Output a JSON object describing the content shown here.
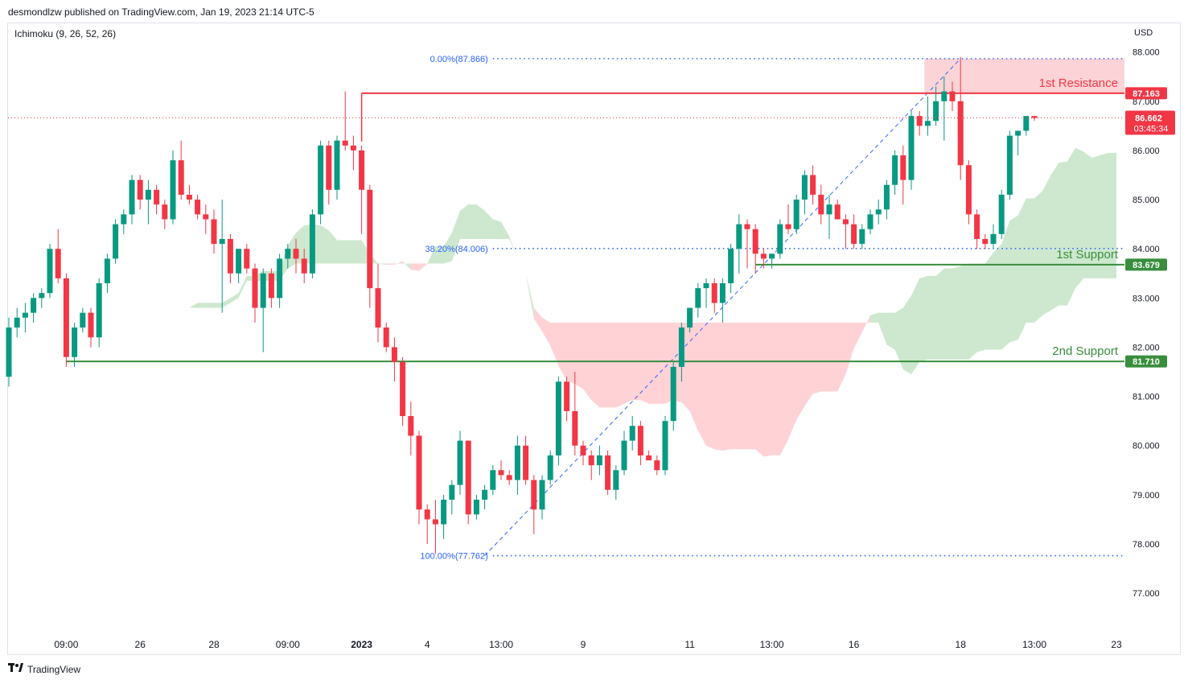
{
  "header": {
    "publisher": "desmondlzw published on TradingView.com, Jan 19, 2023 21:14 UTC-5",
    "indicator": "Ichimoku (9, 26, 52, 26)",
    "currency": "USD"
  },
  "footer": {
    "logo_text": "TradingView"
  },
  "chart_data": {
    "type": "candlestick",
    "ylim": [
      76.2,
      88.6
    ],
    "y_ticks": [
      "77.000",
      "78.000",
      "79.000",
      "80.000",
      "81.000",
      "82.000",
      "83.000",
      "84.000",
      "85.000",
      "86.000",
      "87.000",
      "88.000"
    ],
    "x_ticks": [
      "09:00",
      "26",
      "28",
      "09:00",
      "2023",
      "4",
      "13:00",
      "9",
      "11",
      "13:00",
      "16",
      "18",
      "13:00",
      "23"
    ],
    "x_tick_index": [
      7,
      16,
      25,
      34,
      43,
      51,
      60,
      70,
      83,
      93,
      103,
      116,
      125,
      135
    ],
    "current_price": {
      "value": 86.662,
      "label": "86.662",
      "countdown": "03:45:34"
    },
    "levels": [
      {
        "name": "1st Resistance",
        "value": 87.163,
        "label": "87.163",
        "color": "#f23645"
      },
      {
        "name": "1st Support",
        "value": 83.679,
        "label": "83.679",
        "color": "#388e3c"
      },
      {
        "name": "2nd Support",
        "value": 81.71,
        "label": "81.710",
        "color": "#388e3c"
      }
    ],
    "fib_levels": [
      {
        "label": "0.00%(87.866)",
        "value": 87.866
      },
      {
        "label": "38.20%(84.006)",
        "value": 84.006
      },
      {
        "label": "100.00%(77.762)",
        "value": 77.762
      }
    ],
    "resistance_zone": [
      87.163,
      87.866
    ],
    "colors": {
      "up": "#089981",
      "down": "#f23645",
      "cloud_bull": "#c8e6c9",
      "cloud_bear": "#ffcdd2",
      "line_green": "#388e3c",
      "fib": "#2962ff"
    },
    "candles": [
      [
        81.4,
        82.6,
        81.2,
        82.4
      ],
      [
        82.4,
        82.8,
        82.2,
        82.6
      ],
      [
        82.6,
        82.9,
        82.3,
        82.7
      ],
      [
        82.7,
        83.1,
        82.5,
        83.0
      ],
      [
        83.0,
        83.2,
        82.8,
        83.1
      ],
      [
        83.1,
        84.1,
        83.0,
        84.0
      ],
      [
        84.0,
        84.4,
        83.3,
        83.4
      ],
      [
        83.4,
        83.5,
        81.6,
        81.8
      ],
      [
        81.8,
        82.5,
        81.6,
        82.4
      ],
      [
        82.4,
        82.8,
        82.3,
        82.7
      ],
      [
        82.7,
        82.8,
        82.0,
        82.2
      ],
      [
        82.2,
        83.4,
        82.0,
        83.3
      ],
      [
        83.3,
        83.9,
        83.1,
        83.8
      ],
      [
        83.8,
        84.6,
        83.7,
        84.5
      ],
      [
        84.5,
        84.8,
        84.3,
        84.7
      ],
      [
        84.7,
        85.5,
        84.5,
        85.4
      ],
      [
        85.4,
        85.5,
        84.8,
        85.0
      ],
      [
        85.0,
        85.4,
        84.5,
        85.2
      ],
      [
        85.2,
        85.3,
        84.7,
        84.9
      ],
      [
        84.9,
        85.0,
        84.4,
        84.6
      ],
      [
        84.6,
        86.0,
        84.5,
        85.8
      ],
      [
        85.8,
        86.2,
        85.0,
        85.1
      ],
      [
        85.1,
        85.3,
        84.9,
        85.0
      ],
      [
        85.0,
        85.1,
        84.6,
        84.7
      ],
      [
        84.7,
        84.9,
        84.3,
        84.6
      ],
      [
        84.6,
        84.8,
        83.9,
        84.1
      ],
      [
        84.1,
        85.0,
        82.7,
        84.2
      ],
      [
        84.2,
        84.3,
        83.3,
        83.5
      ],
      [
        83.5,
        84.0,
        83.3,
        84.0
      ],
      [
        84.0,
        84.1,
        83.5,
        83.6
      ],
      [
        83.6,
        83.7,
        82.5,
        82.8
      ],
      [
        82.8,
        83.6,
        81.9,
        83.5
      ],
      [
        83.5,
        83.6,
        82.8,
        83.0
      ],
      [
        83.0,
        83.9,
        82.8,
        83.8
      ],
      [
        83.8,
        84.1,
        83.6,
        84.0
      ],
      [
        84.0,
        84.2,
        83.5,
        83.8
      ],
      [
        83.8,
        84.0,
        83.3,
        83.5
      ],
      [
        83.5,
        84.8,
        83.4,
        84.7
      ],
      [
        84.7,
        86.2,
        84.5,
        86.1
      ],
      [
        86.1,
        86.2,
        84.9,
        85.2
      ],
      [
        85.2,
        86.3,
        85.0,
        86.2
      ],
      [
        86.2,
        87.2,
        86.0,
        86.1
      ],
      [
        86.1,
        86.3,
        85.6,
        86.0
      ],
      [
        86.0,
        86.1,
        84.3,
        85.2
      ],
      [
        85.2,
        85.3,
        82.8,
        83.2
      ],
      [
        83.2,
        83.7,
        82.1,
        82.4
      ],
      [
        82.4,
        82.5,
        81.9,
        82.0
      ],
      [
        82.0,
        82.2,
        81.3,
        81.7
      ],
      [
        81.7,
        81.8,
        80.4,
        80.6
      ],
      [
        80.6,
        80.9,
        79.8,
        80.2
      ],
      [
        80.2,
        80.3,
        78.4,
        78.7
      ],
      [
        78.7,
        78.8,
        78.0,
        78.5
      ],
      [
        78.5,
        78.9,
        77.8,
        78.4
      ],
      [
        78.4,
        79.0,
        78.1,
        78.9
      ],
      [
        78.9,
        79.3,
        78.6,
        79.2
      ],
      [
        79.2,
        80.3,
        79.0,
        80.1
      ],
      [
        80.1,
        80.1,
        78.4,
        78.6
      ],
      [
        78.6,
        79.0,
        78.5,
        78.9
      ],
      [
        78.9,
        79.2,
        78.7,
        79.1
      ],
      [
        79.1,
        79.6,
        79.0,
        79.5
      ],
      [
        79.5,
        79.7,
        79.3,
        79.4
      ],
      [
        79.4,
        79.5,
        79.2,
        79.3
      ],
      [
        79.3,
        80.2,
        79.0,
        80.0
      ],
      [
        80.0,
        80.2,
        79.2,
        79.3
      ],
      [
        79.3,
        79.4,
        78.2,
        78.7
      ],
      [
        78.7,
        79.4,
        78.5,
        79.3
      ],
      [
        79.3,
        79.9,
        79.2,
        79.8
      ],
      [
        79.8,
        81.4,
        79.6,
        81.3
      ],
      [
        81.3,
        81.4,
        80.5,
        80.7
      ],
      [
        80.7,
        81.5,
        79.8,
        80.0
      ],
      [
        80.0,
        80.1,
        79.6,
        79.8
      ],
      [
        79.8,
        79.9,
        79.3,
        79.6
      ],
      [
        79.6,
        80.0,
        79.4,
        79.8
      ],
      [
        79.8,
        79.9,
        79.0,
        79.1
      ],
      [
        79.1,
        79.6,
        78.9,
        79.5
      ],
      [
        79.5,
        80.3,
        79.4,
        80.1
      ],
      [
        80.1,
        80.6,
        79.9,
        80.4
      ],
      [
        80.4,
        80.5,
        79.6,
        79.8
      ],
      [
        79.8,
        79.9,
        79.7,
        79.7
      ],
      [
        79.7,
        79.8,
        79.4,
        79.5
      ],
      [
        79.5,
        80.6,
        79.4,
        80.5
      ],
      [
        80.5,
        81.7,
        80.3,
        81.6
      ],
      [
        81.6,
        82.5,
        81.3,
        82.4
      ],
      [
        82.4,
        82.8,
        82.3,
        82.8
      ],
      [
        82.8,
        83.3,
        82.6,
        83.2
      ],
      [
        83.2,
        83.4,
        82.8,
        83.3
      ],
      [
        83.3,
        83.4,
        82.7,
        82.9
      ],
      [
        82.9,
        83.4,
        82.5,
        83.3
      ],
      [
        83.3,
        84.1,
        83.1,
        84.0
      ],
      [
        84.0,
        84.7,
        83.5,
        84.5
      ],
      [
        84.5,
        84.6,
        83.6,
        84.4
      ],
      [
        84.4,
        84.5,
        83.5,
        83.9
      ],
      [
        83.9,
        84.0,
        83.6,
        83.8
      ],
      [
        83.8,
        83.9,
        83.6,
        83.9
      ],
      [
        83.9,
        84.6,
        83.8,
        84.5
      ],
      [
        84.5,
        84.9,
        84.3,
        84.4
      ],
      [
        84.4,
        85.1,
        84.3,
        85.0
      ],
      [
        85.0,
        85.6,
        84.7,
        85.5
      ],
      [
        85.5,
        85.7,
        84.9,
        85.1
      ],
      [
        85.1,
        85.3,
        84.5,
        84.7
      ],
      [
        84.7,
        85.1,
        84.2,
        84.9
      ],
      [
        84.9,
        85.0,
        84.6,
        84.6
      ],
      [
        84.6,
        84.7,
        84.0,
        84.5
      ],
      [
        84.5,
        84.7,
        84.0,
        84.1
      ],
      [
        84.1,
        84.5,
        84.0,
        84.4
      ],
      [
        84.4,
        84.8,
        84.3,
        84.7
      ],
      [
        84.7,
        85.0,
        84.5,
        84.8
      ],
      [
        84.8,
        85.4,
        84.6,
        85.3
      ],
      [
        85.3,
        86.0,
        85.1,
        85.9
      ],
      [
        85.9,
        86.1,
        84.9,
        85.4
      ],
      [
        85.4,
        86.8,
        85.2,
        86.7
      ],
      [
        86.7,
        86.8,
        86.3,
        86.5
      ],
      [
        86.5,
        87.1,
        86.3,
        86.6
      ],
      [
        86.6,
        87.3,
        86.5,
        87.0
      ],
      [
        87.0,
        87.5,
        86.2,
        87.2
      ],
      [
        87.2,
        87.4,
        86.8,
        87.0
      ],
      [
        87.0,
        87.9,
        85.4,
        85.7
      ],
      [
        85.7,
        85.8,
        84.5,
        84.7
      ],
      [
        84.7,
        84.8,
        84.0,
        84.2
      ],
      [
        84.2,
        84.3,
        84.0,
        84.1
      ],
      [
        84.1,
        84.5,
        84.0,
        84.3
      ],
      [
        84.3,
        85.2,
        84.2,
        85.1
      ],
      [
        85.1,
        86.4,
        85.0,
        86.3
      ],
      [
        86.3,
        86.4,
        85.9,
        86.4
      ],
      [
        86.4,
        86.7,
        86.3,
        86.7
      ],
      [
        86.7,
        86.7,
        86.6,
        86.66
      ]
    ]
  }
}
